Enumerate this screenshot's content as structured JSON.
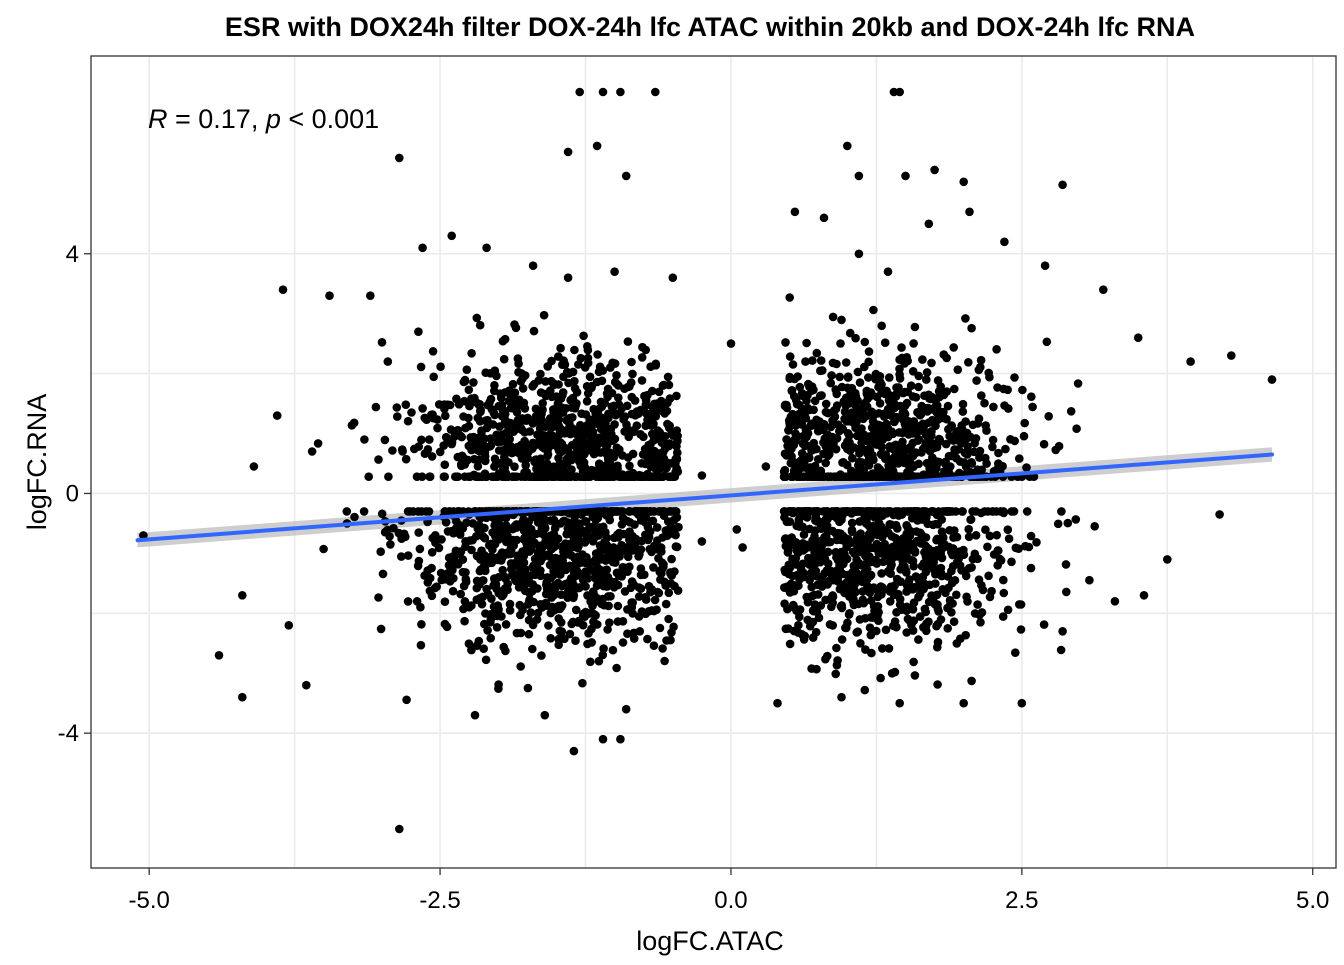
{
  "chart_data": {
    "type": "scatter",
    "title": "ESR with DOX24h filter DOX-24h lfc ATAC within 20kb and DOX-24h lfc RNA",
    "xlabel": "logFC.ATAC",
    "ylabel": "logFC.RNA",
    "xlim": [
      -5.5,
      5.2
    ],
    "ylim": [
      -6.25,
      7.3
    ],
    "x_ticks": [
      -5.0,
      -2.5,
      0.0,
      2.5,
      5.0
    ],
    "x_tick_labels": [
      "-5.0",
      "-2.5",
      "0.0",
      "2.5",
      "5.0"
    ],
    "y_ticks": [
      -4,
      0,
      4
    ],
    "y_tick_labels": [
      "-4",
      "0",
      "4"
    ],
    "grid": true,
    "annotation": {
      "r_symbol": "R",
      "r_text": " = 0.17, ",
      "p_symbol": "p",
      "p_text": " < 0.001"
    },
    "regression": {
      "x": [
        -5.1,
        4.65
      ],
      "y": [
        -0.78,
        0.65
      ],
      "color": "#3366FF",
      "se_band_color": "#bdbdbd"
    },
    "points": [
      [
        -2.85,
        5.6
      ],
      [
        -2.85,
        -5.6
      ],
      [
        -1.3,
        6.7
      ],
      [
        -1.1,
        6.7
      ],
      [
        -0.95,
        6.7
      ],
      [
        -0.65,
        6.7
      ],
      [
        1.4,
        6.7
      ],
      [
        1.45,
        6.7
      ],
      [
        -1.4,
        5.7
      ],
      [
        -1.15,
        5.8
      ],
      [
        -0.9,
        5.3
      ],
      [
        1.0,
        5.8
      ],
      [
        1.1,
        5.3
      ],
      [
        1.5,
        5.3
      ],
      [
        1.75,
        5.4
      ],
      [
        2.0,
        5.2
      ],
      [
        2.85,
        5.15
      ],
      [
        -1.35,
        -4.3
      ],
      [
        -1.1,
        -4.1
      ],
      [
        -0.95,
        -4.1
      ],
      [
        -3.85,
        3.4
      ],
      [
        -3.45,
        3.3
      ],
      [
        -3.1,
        3.3
      ],
      [
        -2.65,
        4.1
      ],
      [
        -2.4,
        4.3
      ],
      [
        -2.1,
        4.1
      ],
      [
        -1.7,
        3.8
      ],
      [
        -1.4,
        3.6
      ],
      [
        -1.0,
        3.7
      ],
      [
        -0.5,
        3.6
      ],
      [
        0.55,
        4.7
      ],
      [
        0.8,
        4.6
      ],
      [
        1.1,
        4.0
      ],
      [
        1.35,
        3.7
      ],
      [
        1.7,
        4.5
      ],
      [
        2.05,
        4.7
      ],
      [
        2.35,
        4.2
      ],
      [
        2.7,
        3.8
      ],
      [
        3.2,
        3.4
      ],
      [
        3.5,
        2.6
      ],
      [
        3.95,
        2.2
      ],
      [
        4.3,
        2.3
      ],
      [
        4.65,
        1.9
      ],
      [
        4.2,
        -0.35
      ],
      [
        3.75,
        -1.1
      ],
      [
        3.55,
        -1.7
      ],
      [
        -4.4,
        -2.7
      ],
      [
        -4.2,
        -1.7
      ],
      [
        -4.2,
        -3.4
      ],
      [
        -3.65,
        -3.2
      ],
      [
        -3.8,
        -2.2
      ],
      [
        -3.9,
        1.3
      ],
      [
        -3.6,
        0.7
      ],
      [
        -4.1,
        0.45
      ],
      [
        -5.05,
        -0.7
      ],
      [
        -2.2,
        -3.7
      ],
      [
        -1.6,
        -3.7
      ],
      [
        -0.9,
        -3.6
      ],
      [
        0.4,
        -3.5
      ],
      [
        0.95,
        -3.4
      ],
      [
        1.45,
        -3.5
      ],
      [
        2.0,
        -3.5
      ],
      [
        2.5,
        -3.5
      ],
      [
        2.85,
        -2.3
      ],
      [
        3.3,
        -1.8
      ],
      [
        0.0,
        2.5
      ],
      [
        0.3,
        0.45
      ],
      [
        0.1,
        -0.9
      ],
      [
        0.05,
        -0.6
      ],
      [
        -0.25,
        0.3
      ],
      [
        -0.25,
        -0.8
      ],
      [
        -3.3,
        -0.5
      ],
      [
        -3.15,
        0.9
      ]
    ],
    "clusters": [
      {
        "cx": -1.4,
        "cy": 0.9,
        "sx": 0.62,
        "sy": 0.7,
        "n": 900,
        "ymin": 0.28,
        "ymax": 4.2
      },
      {
        "cx": -1.5,
        "cy": -1.0,
        "sx": 0.62,
        "sy": 0.8,
        "n": 1000,
        "ymin": -4.0,
        "ymax": -0.3
      },
      {
        "cx": 1.3,
        "cy": 0.9,
        "sx": 0.6,
        "sy": 0.7,
        "n": 800,
        "ymin": 0.28,
        "ymax": 4.2
      },
      {
        "cx": 1.3,
        "cy": -1.0,
        "sx": 0.6,
        "sy": 0.75,
        "n": 850,
        "ymin": -3.6,
        "ymax": -0.3
      }
    ]
  }
}
